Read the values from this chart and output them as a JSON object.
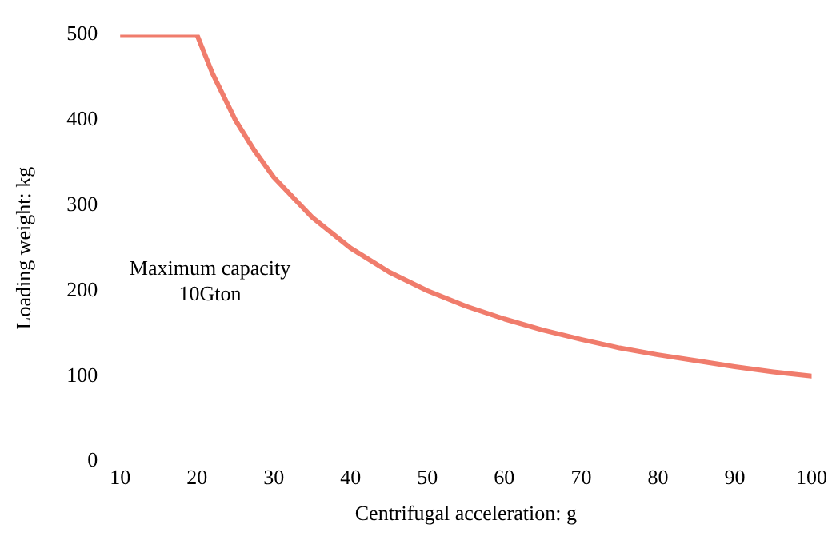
{
  "chart_data": {
    "type": "line",
    "xlabel": "Centrifugal acceleration: g",
    "ylabel": "Loading weight: kg",
    "annotations": [
      "Maximum capacity\n10Gton"
    ],
    "x": [
      10,
      20,
      22,
      25,
      27.5,
      30,
      35,
      40,
      45,
      50,
      55,
      60,
      65,
      70,
      75,
      80,
      85,
      90,
      95,
      100
    ],
    "series": [
      {
        "color": "#f07c6c",
        "values": [
          500,
          500,
          455,
          400,
          364,
          333,
          286,
          250,
          222,
          200,
          182,
          167,
          154,
          143,
          133,
          125,
          118,
          111,
          105,
          100
        ]
      }
    ],
    "xlim": [
      10,
      100
    ],
    "xticks": [
      10,
      20,
      30,
      40,
      50,
      60,
      70,
      80,
      90,
      100
    ],
    "ylim": [
      0,
      500
    ],
    "yticks": [
      0,
      100,
      200,
      300,
      400,
      500
    ],
    "grid": false,
    "legend": false,
    "marker": "none",
    "line_style": "solid"
  }
}
